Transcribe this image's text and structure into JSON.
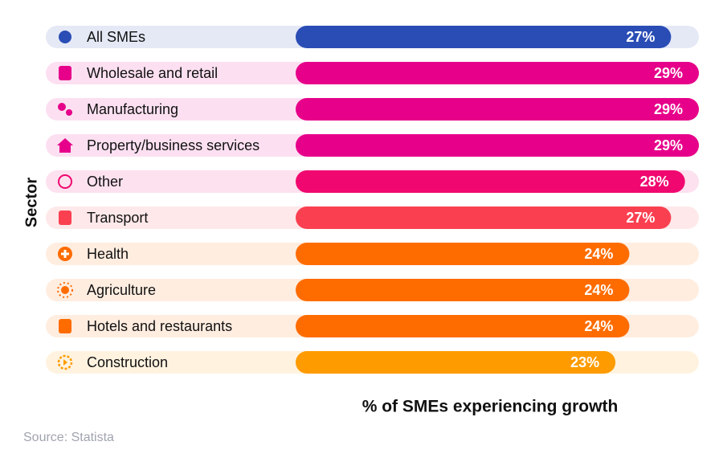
{
  "chart_data": {
    "type": "bar",
    "orientation": "horizontal",
    "x_label": "% of SMEs experiencing growth",
    "y_label": "Sector",
    "source": "Source: Statista",
    "categories": [
      "All SMEs",
      "Wholesale and retail",
      "Manufacturing",
      "Property/business services",
      "Other",
      "Transport",
      "Health",
      "Agriculture",
      "Hotels and restaurants",
      "Construction"
    ],
    "values": [
      27,
      29,
      29,
      29,
      28,
      27,
      24,
      24,
      24,
      23
    ],
    "value_labels": [
      "27%",
      "29%",
      "29%",
      "29%",
      "28%",
      "27%",
      "24%",
      "24%",
      "24%",
      "23%"
    ],
    "colors": [
      "#2a4db5",
      "#e6008a",
      "#e6008a",
      "#e6008a",
      "#f00870",
      "#fa4050",
      "#fe6c00",
      "#fe6c00",
      "#fe6c00",
      "#fe9b00"
    ]
  }
}
